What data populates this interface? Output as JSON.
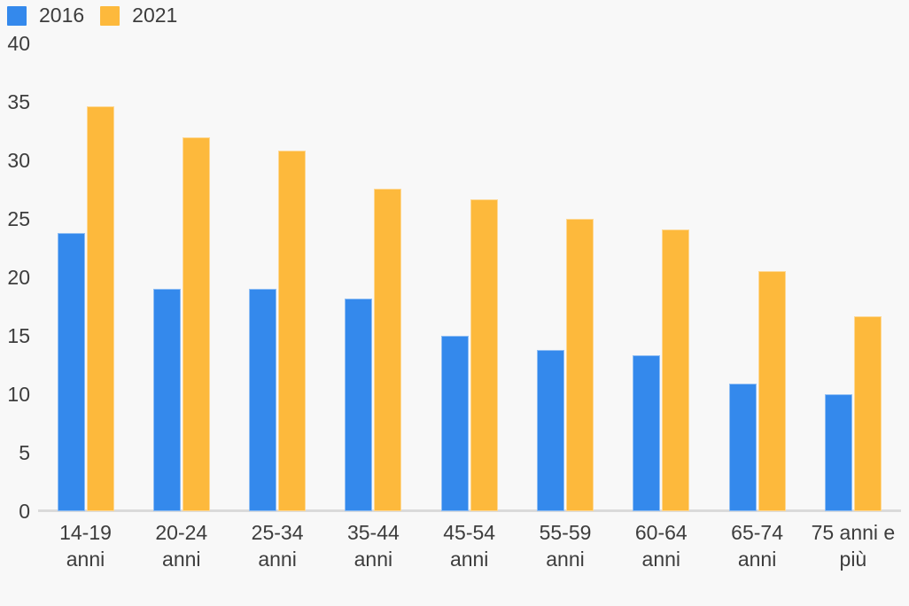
{
  "legend": {
    "items": [
      {
        "label": "2016",
        "color": "#3489ec"
      },
      {
        "label": "2021",
        "color": "#fdb93c"
      }
    ]
  },
  "colors": {
    "background": "#f8f8f8",
    "axis_line": "#dadada",
    "text": "#3d3d3d",
    "series_2016": "#3489ec",
    "series_2021": "#fdb93c"
  },
  "chart_data": {
    "type": "bar",
    "title": "",
    "xlabel": "",
    "ylabel": "",
    "categories": [
      "14-19 anni",
      "20-24 anni",
      "25-34 anni",
      "35-44 anni",
      "45-54 anni",
      "55-59 anni",
      "60-64 anni",
      "65-74 anni",
      "75 anni e più"
    ],
    "category_lines": [
      [
        "14-19",
        "anni"
      ],
      [
        "20-24",
        "anni"
      ],
      [
        "25-34",
        "anni"
      ],
      [
        "35-44",
        "anni"
      ],
      [
        "45-54",
        "anni"
      ],
      [
        "55-59",
        "anni"
      ],
      [
        "60-64",
        "anni"
      ],
      [
        "65-74",
        "anni"
      ],
      [
        "75 anni e",
        "più"
      ]
    ],
    "series": [
      {
        "name": "2016",
        "color": "#3489ec",
        "values": [
          23.8,
          19.0,
          19.0,
          18.2,
          15.0,
          13.8,
          13.3,
          10.9,
          10.0
        ]
      },
      {
        "name": "2021",
        "color": "#fdb93c",
        "values": [
          34.6,
          32.0,
          30.8,
          27.6,
          26.7,
          25.0,
          24.1,
          20.5,
          16.7
        ]
      }
    ],
    "ylim": [
      0,
      40
    ],
    "yticks": [
      0,
      5,
      10,
      15,
      20,
      25,
      30,
      35,
      40
    ],
    "grid": false,
    "legend_position": "top-left"
  }
}
